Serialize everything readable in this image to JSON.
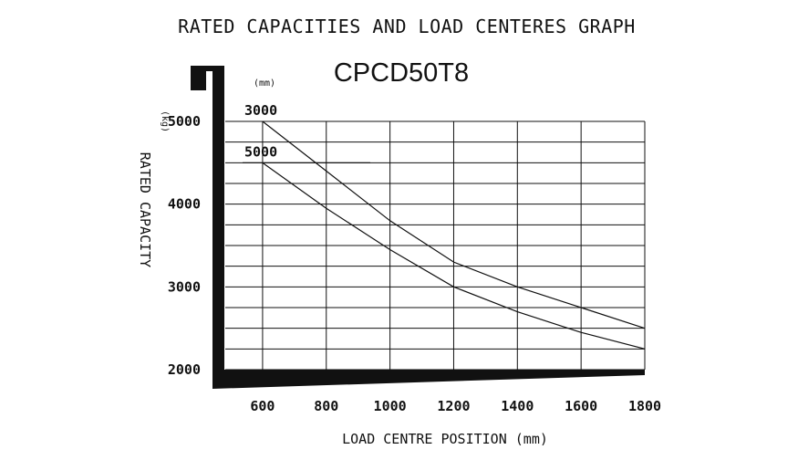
{
  "chart_data": {
    "type": "line",
    "title": "RATED CAPACITIES AND LOAD CENTERES GRAPH",
    "subtitle": "CPCD50T8",
    "xlabel": "LOAD CENTRE POSITION (mm)",
    "ylabel": "RATED CAPACITY",
    "y_unit": "(kg)",
    "series_unit": "(mm)",
    "xlim": [
      500,
      1800
    ],
    "ylim": [
      2000,
      5000
    ],
    "x_ticks": [
      600,
      800,
      1000,
      1200,
      1400,
      1600,
      1800
    ],
    "x_tick_labels": [
      "600",
      "800",
      "1000",
      "1200",
      "1400",
      "1600",
      "1800"
    ],
    "y_ticks": [
      2000,
      3000,
      4000,
      5000
    ],
    "y_tick_labels": [
      "2000",
      "3000",
      "4000",
      "5000"
    ],
    "grid": true,
    "series": [
      {
        "name": "3000",
        "x": [
          600,
          800,
          1000,
          1200,
          1400,
          1600,
          1800
        ],
        "values": [
          5000,
          4400,
          3800,
          3300,
          3000,
          2750,
          2500
        ]
      },
      {
        "name": "5000",
        "x": [
          600,
          800,
          1000,
          1200,
          1400,
          1600,
          1800
        ],
        "values": [
          4500,
          3950,
          3450,
          3000,
          2700,
          2450,
          2250
        ]
      }
    ]
  }
}
